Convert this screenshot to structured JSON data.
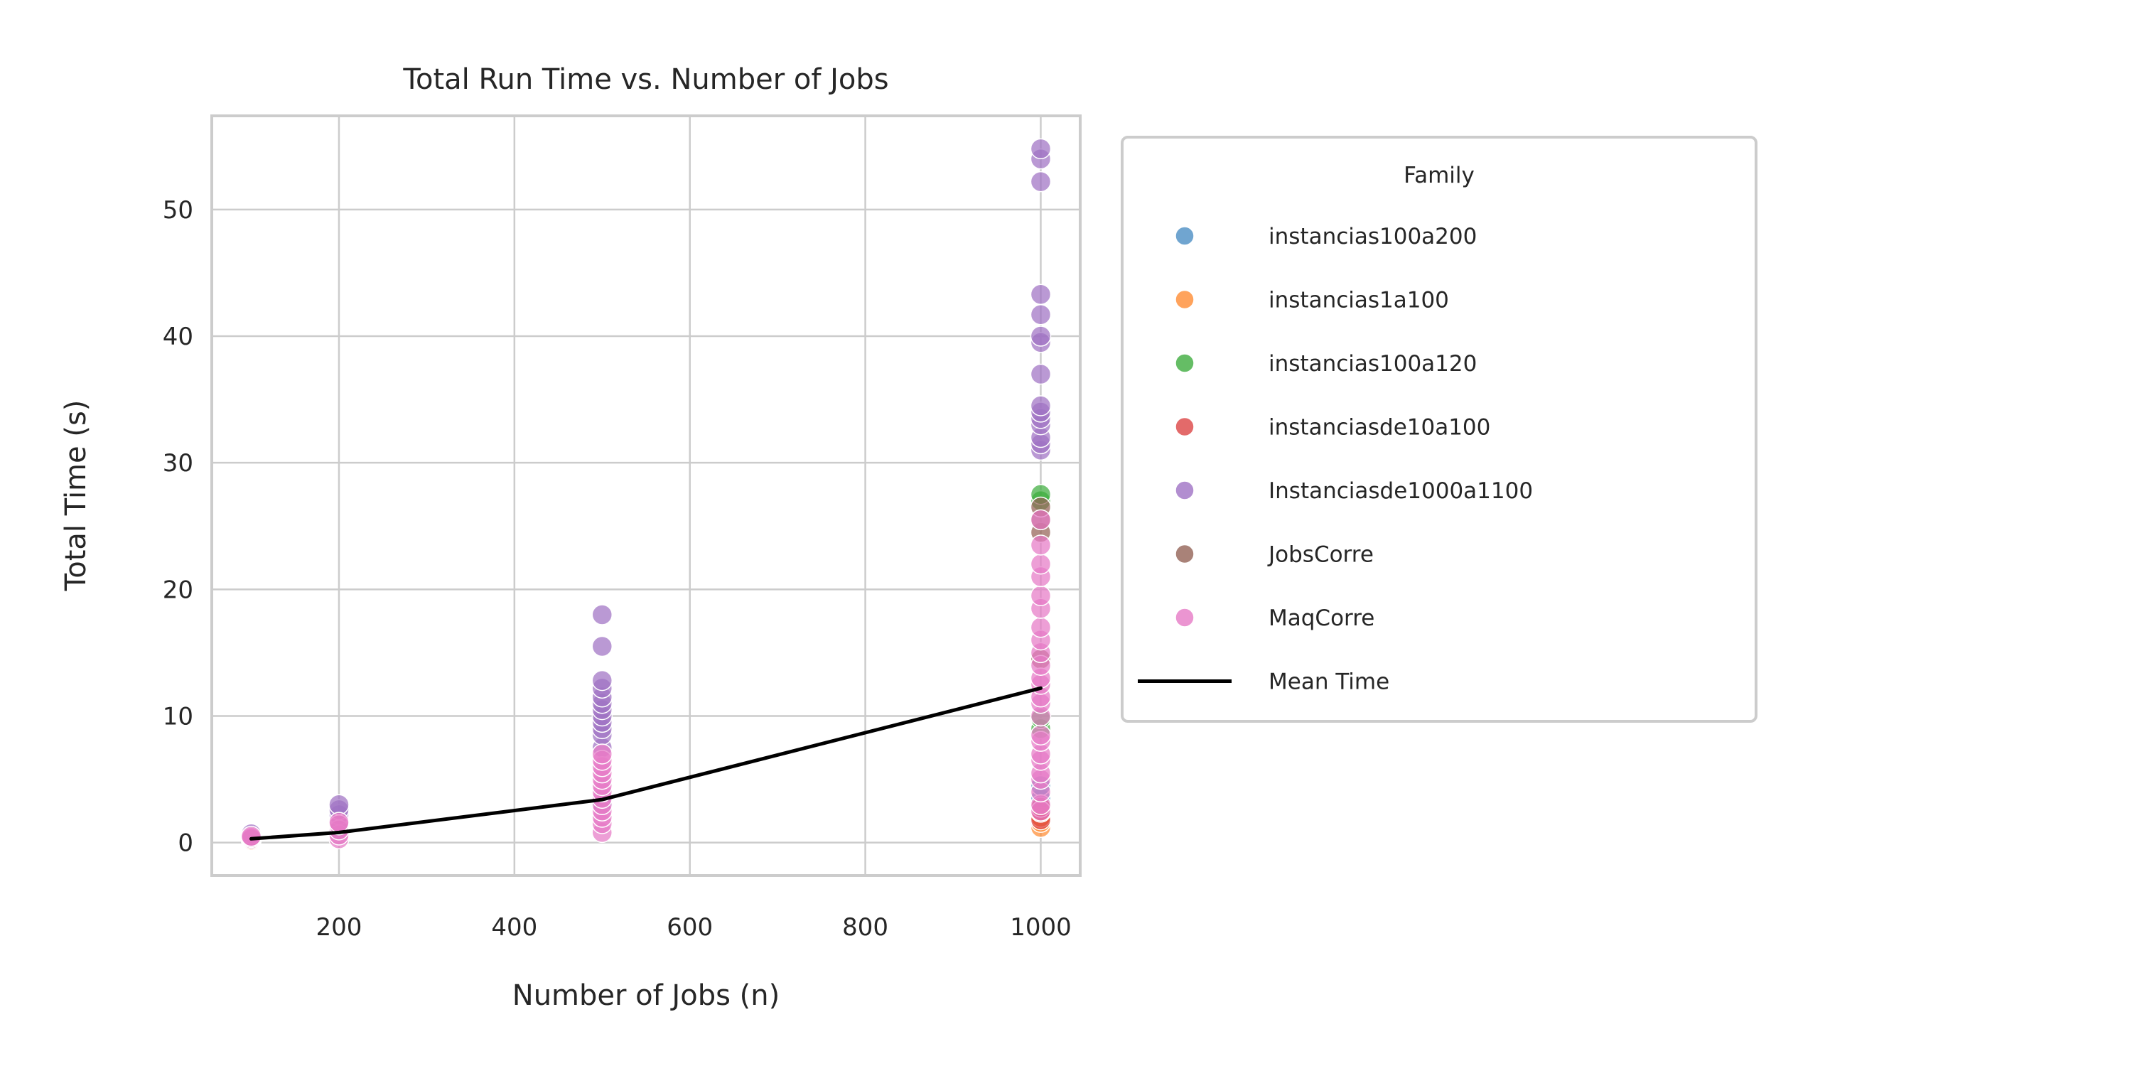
{
  "chart_data": {
    "type": "scatter",
    "title": "Total Run Time vs. Number of Jobs",
    "xlabel": "Number of Jobs (n)",
    "ylabel": "Total Time (s)",
    "xlim": [
      55,
      1045
    ],
    "ylim": [
      -2.6,
      57.4
    ],
    "xticks": [
      200,
      400,
      600,
      800,
      1000
    ],
    "yticks": [
      0,
      10,
      20,
      30,
      40,
      50
    ],
    "grid": true,
    "legend": {
      "title": "Family",
      "placement": "outside-right",
      "entries": [
        {
          "name": "instancias100a200",
          "color": "#4c8fc4"
        },
        {
          "name": "instancias1a100",
          "color": "#ff8c33"
        },
        {
          "name": "instancias100a120",
          "color": "#3fad3f"
        },
        {
          "name": "instanciasde10a100",
          "color": "#dc4545"
        },
        {
          "name": "Instanciasde1000a1100",
          "color": "#9f72c4"
        },
        {
          "name": "JobsCorre",
          "color": "#946356"
        },
        {
          "name": "MaqCorre",
          "color": "#e67ac6"
        },
        {
          "name": "Mean Time",
          "color": "#000000",
          "kind": "line"
        }
      ]
    },
    "series": [
      {
        "name": "instancias100a200",
        "color": "#4c8fc4",
        "points": [
          [
            100,
            0.4
          ],
          [
            200,
            1.0
          ],
          [
            500,
            3.0
          ],
          [
            1000,
            3.5
          ],
          [
            1000,
            4.5
          ]
        ]
      },
      {
        "name": "instancias1a100",
        "color": "#ff8c33",
        "points": [
          [
            100,
            0.2
          ],
          [
            1000,
            1.2
          ],
          [
            1000,
            1.6
          ],
          [
            1000,
            2.0
          ]
        ]
      },
      {
        "name": "instancias100a120",
        "color": "#3fad3f",
        "points": [
          [
            100,
            0.3
          ],
          [
            1000,
            9.0
          ],
          [
            1000,
            9.8
          ],
          [
            1000,
            27.0
          ],
          [
            1000,
            27.5
          ]
        ]
      },
      {
        "name": "instanciasde10a100",
        "color": "#dc4545",
        "points": [
          [
            100,
            0.5
          ],
          [
            1000,
            1.8
          ],
          [
            1000,
            2.4
          ],
          [
            1000,
            2.8
          ]
        ]
      },
      {
        "name": "Instanciasde1000a1100",
        "color": "#9f72c4",
        "points": [
          [
            100,
            0.7
          ],
          [
            200,
            2.2
          ],
          [
            200,
            2.6
          ],
          [
            200,
            3.0
          ],
          [
            500,
            7.5
          ],
          [
            500,
            8.5
          ],
          [
            500,
            9.0
          ],
          [
            500,
            9.5
          ],
          [
            500,
            10.0
          ],
          [
            500,
            10.5
          ],
          [
            500,
            11.0
          ],
          [
            500,
            11.5
          ],
          [
            500,
            12.2
          ],
          [
            500,
            12.8
          ],
          [
            500,
            15.5
          ],
          [
            500,
            18.0
          ],
          [
            1000,
            31.0
          ],
          [
            1000,
            31.5
          ],
          [
            1000,
            32.0
          ],
          [
            1000,
            33.0
          ],
          [
            1000,
            33.5
          ],
          [
            1000,
            34.0
          ],
          [
            1000,
            34.5
          ],
          [
            1000,
            37.0
          ],
          [
            1000,
            39.5
          ],
          [
            1000,
            40.0
          ],
          [
            1000,
            41.7
          ],
          [
            1000,
            43.3
          ],
          [
            1000,
            52.2
          ],
          [
            1000,
            54.0
          ],
          [
            1000,
            54.8
          ]
        ]
      },
      {
        "name": "JobsCorre",
        "color": "#946356",
        "points": [
          [
            1000,
            14.5
          ],
          [
            1000,
            24.5
          ],
          [
            1000,
            25.5
          ],
          [
            1000,
            26.5
          ]
        ]
      },
      {
        "name": "MaqCorre",
        "color": "#e67ac6",
        "points": [
          [
            100,
            0.3
          ],
          [
            100,
            0.4
          ],
          [
            100,
            0.5
          ],
          [
            200,
            0.3
          ],
          [
            200,
            0.6
          ],
          [
            200,
            1.0
          ],
          [
            200,
            1.4
          ],
          [
            200,
            1.6
          ],
          [
            500,
            0.8
          ],
          [
            500,
            1.5
          ],
          [
            500,
            2.0
          ],
          [
            500,
            2.5
          ],
          [
            500,
            3.0
          ],
          [
            500,
            3.5
          ],
          [
            500,
            4.0
          ],
          [
            500,
            4.5
          ],
          [
            500,
            5.0
          ],
          [
            500,
            5.5
          ],
          [
            500,
            6.0
          ],
          [
            500,
            6.5
          ],
          [
            500,
            7.0
          ],
          [
            1000,
            2.5
          ],
          [
            1000,
            3.0
          ],
          [
            1000,
            4.0
          ],
          [
            1000,
            5.0
          ],
          [
            1000,
            5.5
          ],
          [
            1000,
            6.5
          ],
          [
            1000,
            7.0
          ],
          [
            1000,
            8.0
          ],
          [
            1000,
            8.5
          ],
          [
            1000,
            10.0
          ],
          [
            1000,
            11.0
          ],
          [
            1000,
            11.5
          ],
          [
            1000,
            12.5
          ],
          [
            1000,
            13.0
          ],
          [
            1000,
            14.0
          ],
          [
            1000,
            15.0
          ],
          [
            1000,
            16.0
          ],
          [
            1000,
            17.0
          ],
          [
            1000,
            18.5
          ],
          [
            1000,
            19.5
          ],
          [
            1000,
            21.0
          ],
          [
            1000,
            22.0
          ],
          [
            1000,
            23.5
          ],
          [
            1000,
            25.5
          ]
        ]
      }
    ],
    "mean_line": {
      "name": "Mean Time",
      "color": "#000000",
      "x": [
        100,
        200,
        500,
        1000
      ],
      "y": [
        0.3,
        0.8,
        3.4,
        12.2
      ]
    }
  }
}
